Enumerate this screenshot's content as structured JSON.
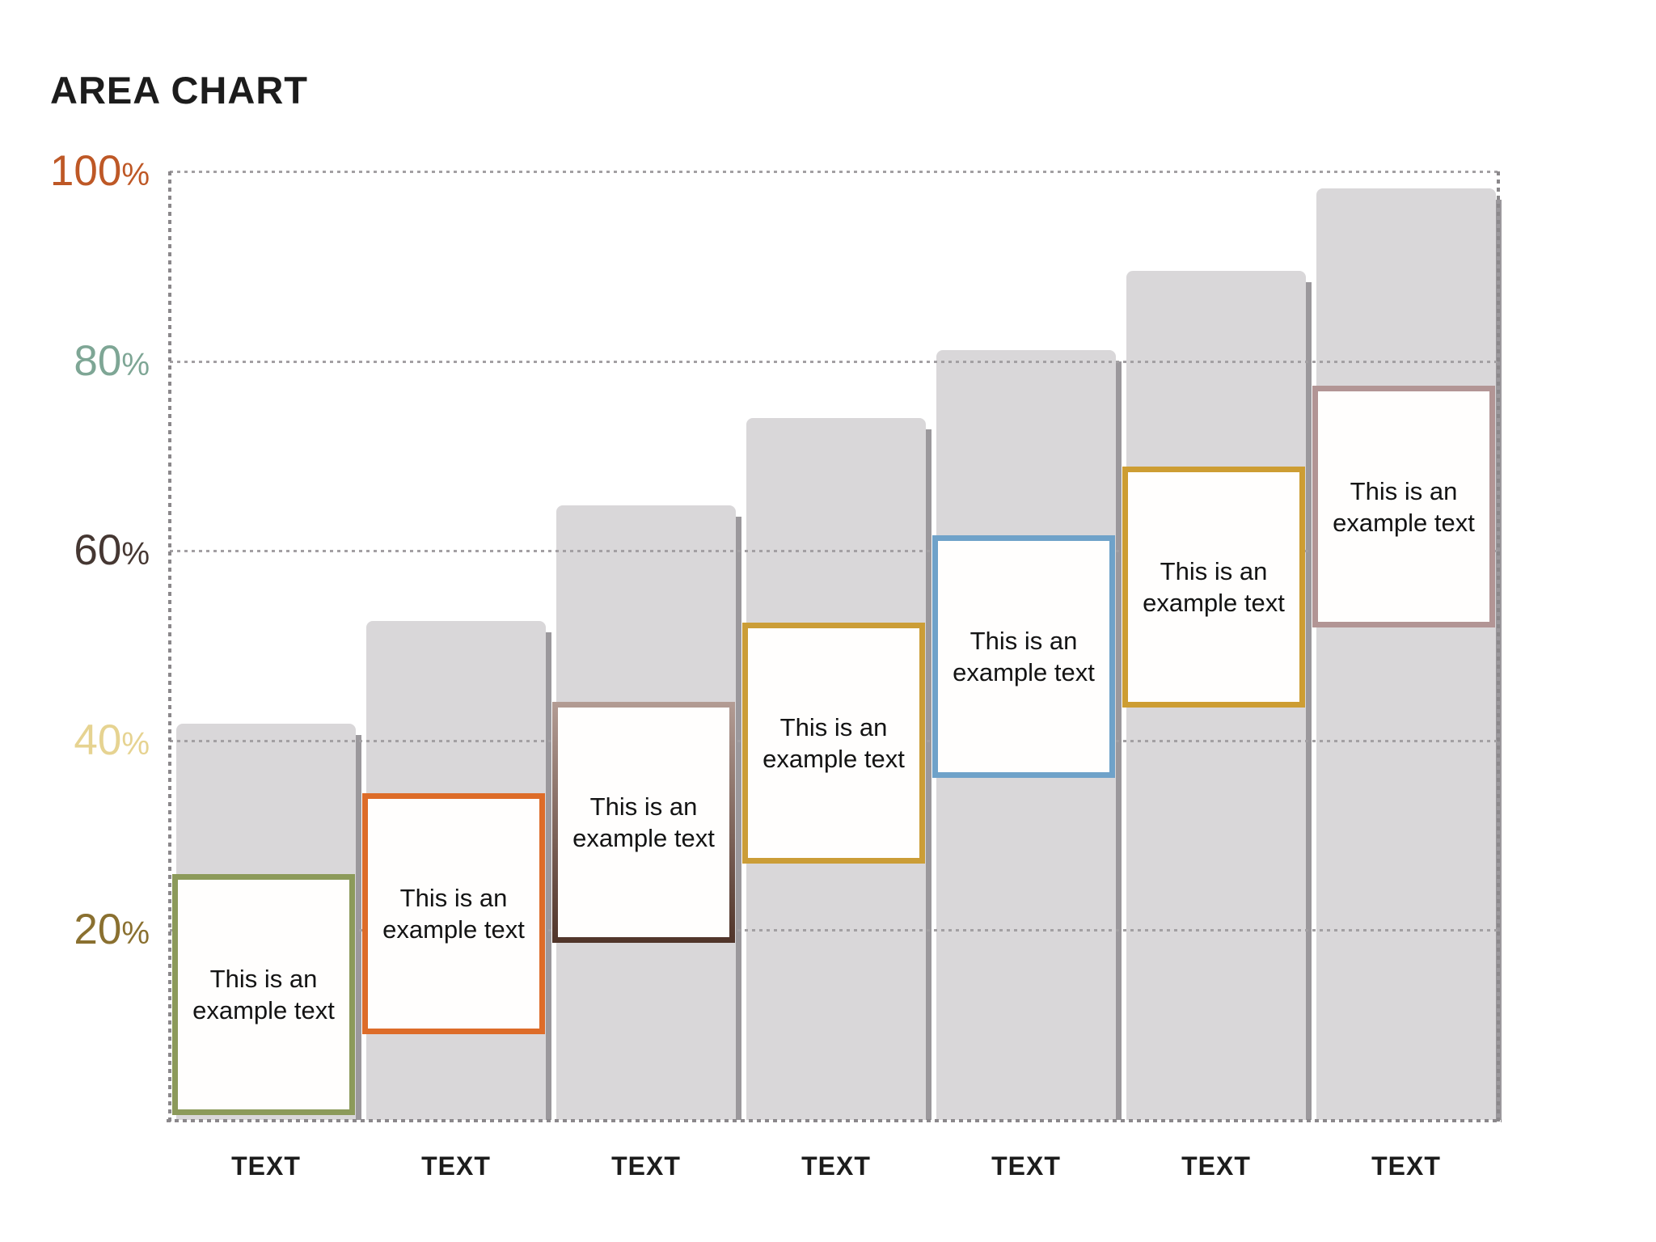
{
  "slide": {
    "title": "AREA CHART",
    "background": "#ffffff",
    "title_color": "#1c1c1c"
  },
  "chart_data": {
    "type": "bar",
    "title": "AREA CHART",
    "categories": [
      "TEXT",
      "TEXT",
      "TEXT",
      "TEXT",
      "TEXT",
      "TEXT",
      "TEXT"
    ],
    "values": [
      41.8,
      52.6,
      64.8,
      74.0,
      81.2,
      89.5,
      98.2
    ],
    "ylim": [
      0,
      100
    ],
    "grid": "dotted horizontal gridlines at each tick, dotted axis frame left/right/bottom",
    "legend": "none",
    "bar_fill_color": "#d9d7d9",
    "bar_shadow_color": "#9b989c",
    "grid_color": "#a3a0a3",
    "axis_color": "#8b888b",
    "yticks": [
      {
        "label": "100%",
        "value": 100,
        "color": "#be5826"
      },
      {
        "label": "80%",
        "value": 80,
        "color": "#7ea695"
      },
      {
        "label": "60%",
        "value": 60,
        "color": "#453732"
      },
      {
        "label": "40%",
        "value": 40,
        "color": "#e6d391"
      },
      {
        "label": "20%",
        "value": 20,
        "color": "#8a7030"
      }
    ],
    "annotations": [
      {
        "text": "This is an example text",
        "bar_index": 0,
        "top_pct": 25.9,
        "bottom_pct": 0.5,
        "border_color": "#8c9a5a",
        "border_color2": ""
      },
      {
        "text": "This is an example text",
        "bar_index": 1,
        "top_pct": 34.4,
        "bottom_pct": 9.0,
        "border_color": "#dd6c29",
        "border_color2": ""
      },
      {
        "text": "This is an example text",
        "bar_index": 2,
        "top_pct": 44.1,
        "bottom_pct": 18.7,
        "border_color": "#b39c94",
        "border_color2": "#503429"
      },
      {
        "text": "This is an example text",
        "bar_index": 3,
        "top_pct": 52.4,
        "bottom_pct": 27.0,
        "border_color": "#cb9d37",
        "border_color2": ""
      },
      {
        "text": "This is an example text",
        "bar_index": 4,
        "top_pct": 61.6,
        "bottom_pct": 36.1,
        "border_color": "#6fa2c9",
        "border_color2": ""
      },
      {
        "text": "This is an example text",
        "bar_index": 5,
        "top_pct": 68.9,
        "bottom_pct": 43.5,
        "border_color": "#cd9d33",
        "border_color2": ""
      },
      {
        "text": "This is an example text",
        "bar_index": 6,
        "top_pct": 77.4,
        "bottom_pct": 51.9,
        "border_color": "#b29595",
        "border_color2": ""
      }
    ]
  }
}
